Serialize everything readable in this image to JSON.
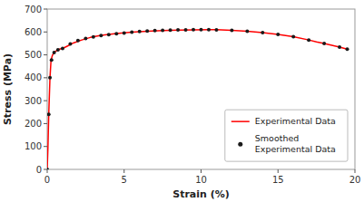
{
  "chart_data": {
    "type": "line",
    "xlabel": "Strain (%)",
    "ylabel": "Stress (MPa)",
    "xlim": [
      0,
      20
    ],
    "ylim": [
      0,
      700
    ],
    "xticks": [
      0,
      5,
      10,
      15,
      20
    ],
    "yticks": [
      0,
      100,
      200,
      300,
      400,
      500,
      600,
      700
    ],
    "legend": "lower right",
    "series": [
      {
        "name": "Experimental Data",
        "type": "line",
        "line_style": "solid",
        "color": "#ff0000",
        "x": [
          0.0,
          0.05,
          0.1,
          0.18,
          0.25,
          0.35,
          0.45,
          0.55,
          0.7,
          0.85,
          1.0,
          1.3,
          1.7,
          2.2,
          2.8,
          3.5,
          4.5,
          5.5,
          6.5,
          7.5,
          8.5,
          9.5,
          10.5,
          11.0,
          12.0,
          13.0,
          14.0,
          15.0,
          16.0,
          17.0,
          17.5,
          18.0,
          18.5,
          19.0,
          19.5
        ],
        "values": [
          0,
          100,
          240,
          400,
          478,
          500,
          510,
          516,
          522,
          526,
          528,
          538,
          552,
          564,
          576,
          585,
          593,
          599,
          603,
          606,
          608,
          609,
          610,
          610,
          607,
          603,
          597,
          589,
          579,
          565,
          557,
          550,
          542,
          534,
          525
        ]
      },
      {
        "name": "Smoothed\nExperimental Data",
        "type": "scatter",
        "marker": "circle",
        "color": "#1a1a1a",
        "x": [
          0.0,
          0.1,
          0.18,
          0.28,
          0.45,
          0.7,
          1.0,
          1.5,
          2.0,
          2.5,
          3.0,
          3.5,
          4.0,
          4.5,
          5.0,
          5.5,
          6.0,
          6.5,
          7.0,
          7.5,
          8.0,
          8.5,
          9.0,
          9.5,
          10.0,
          10.5,
          11.0,
          12.0,
          13.0,
          14.0,
          15.0,
          16.0,
          17.0,
          18.0,
          19.0,
          19.5
        ],
        "values": [
          0,
          240,
          400,
          478,
          510,
          522,
          528,
          548,
          563,
          571,
          578,
          584,
          588,
          592,
          595,
          599,
          602,
          604,
          606,
          607,
          608,
          609,
          609,
          610,
          610,
          610,
          609,
          607,
          603,
          597,
          589,
          579,
          565,
          550,
          534,
          525
        ]
      }
    ]
  }
}
